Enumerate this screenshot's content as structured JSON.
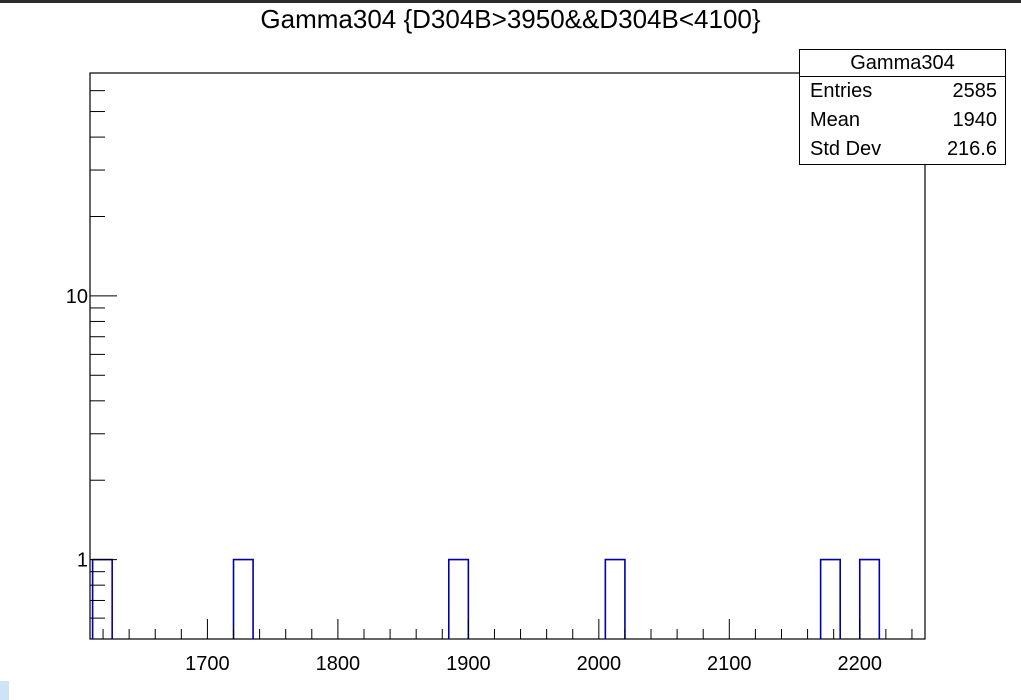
{
  "chart_data": {
    "type": "bar",
    "title": "Gamma304 {D304B>3950&&D304B<4100}",
    "xlabel": "",
    "ylabel": "",
    "xlim": [
      1610,
      2250
    ],
    "ylim": [
      0.5,
      70
    ],
    "log_y": true,
    "grid": false,
    "x_tick_labels": [
      "1700",
      "1800",
      "1900",
      "2000",
      "2100",
      "2200"
    ],
    "y_tick_labels": [
      "1",
      "10"
    ],
    "bin_width": 15,
    "bins": [
      {
        "x_low": 1612,
        "x_high": 1627,
        "value": 1
      },
      {
        "x_low": 1720,
        "x_high": 1735,
        "value": 1
      },
      {
        "x_low": 1885,
        "x_high": 1900,
        "value": 1
      },
      {
        "x_low": 2005,
        "x_high": 2020,
        "value": 1
      },
      {
        "x_low": 2170,
        "x_high": 2185,
        "value": 1
      },
      {
        "x_low": 2200,
        "x_high": 2215,
        "value": 1
      }
    ],
    "line_color": "#0000aa"
  },
  "stats_box": {
    "name": "Gamma304",
    "rows": [
      {
        "label": "Entries",
        "value": "2585"
      },
      {
        "label": "Mean",
        "value": "1940"
      },
      {
        "label": "Std Dev",
        "value": "216.6"
      }
    ]
  }
}
